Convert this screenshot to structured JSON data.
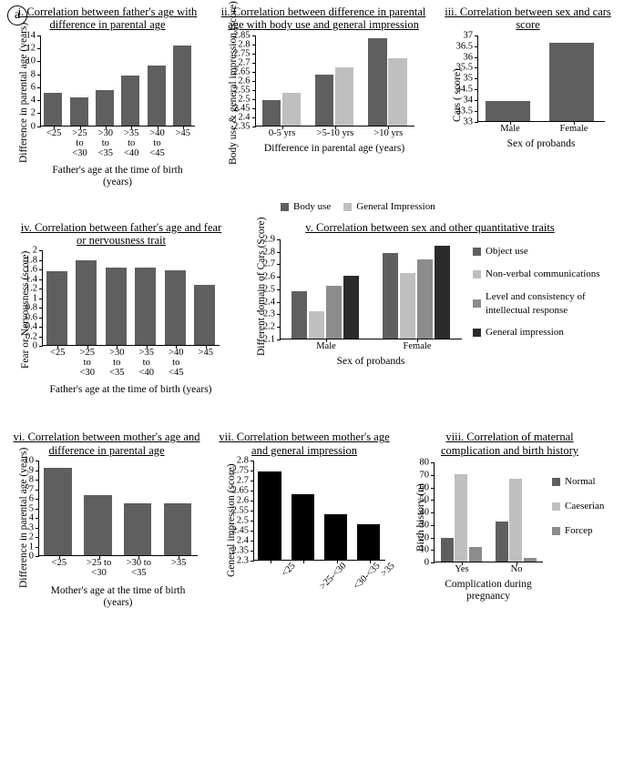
{
  "panel_badge": "a",
  "colors": {
    "dark_grey": "#5f5f5f",
    "light_grey": "#bfbfbf",
    "mid_grey": "#8c8c8c",
    "near_black": "#2b2b2b",
    "black": "#000000",
    "white": "#ffffff"
  },
  "chart_i": {
    "title": "i. Correlation between father's age with difference in parental age",
    "ylabel": "Difference in parental age (years)",
    "xlabel": "Father's age at the time of birth (years)",
    "categories": [
      "<25",
      ">25\nto\n<30",
      ">30\nto\n<35",
      ">35\nto\n<40",
      ">40\nto\n<45",
      ">45"
    ],
    "values": [
      5.0,
      4.3,
      5.4,
      7.6,
      9.2,
      12.3
    ],
    "bar_color": "#5f5f5f",
    "ylim": [
      0,
      14
    ],
    "ytick_step": 2,
    "label_fontsize": 11.5
  },
  "chart_ii": {
    "title": "ii. Correlation between difference in parental age with body use and general impression",
    "ylabel": "Body use & general impression (score)",
    "xlabel": "Difference in parental age (years)",
    "categories": [
      "0-5 yrs",
      ">5-10 yrs",
      ">10 yrs"
    ],
    "series": [
      {
        "name": "Body use",
        "color": "#5f5f5f",
        "values": [
          2.49,
          2.63,
          2.83
        ]
      },
      {
        "name": "General Impression",
        "color": "#bfbfbf",
        "values": [
          2.53,
          2.67,
          2.72
        ]
      }
    ],
    "ylim": [
      2.35,
      2.85
    ],
    "yticks": [
      2.35,
      2.4,
      2.45,
      2.5,
      2.55,
      2.6,
      2.65,
      2.7,
      2.75,
      2.8,
      2.85
    ]
  },
  "chart_ii_legend": {
    "items": [
      {
        "label": "Body use",
        "color": "#5f5f5f"
      },
      {
        "label": "General Impression",
        "color": "#bfbfbf"
      }
    ]
  },
  "chart_iii": {
    "title": "iii.  Correlation between sex and cars score",
    "ylabel": "Cars ( score)",
    "xlabel": "Sex of probands",
    "categories": [
      "Male",
      "Female"
    ],
    "values": [
      33.9,
      36.6
    ],
    "bar_color": "#5f5f5f",
    "ylim": [
      33,
      37
    ],
    "ytick_step": 0.5
  },
  "chart_iv": {
    "title": "iv. Correlation between father's age and fear or nervousness trait",
    "ylabel": "Fear or Nervousness (score)",
    "xlabel": "Father's age at the time of birth (years)",
    "categories": [
      "<25",
      ">25\nto\n<30",
      ">30\nto\n<35",
      ">35\nto\n<40",
      ">40\nto\n<45",
      ">45"
    ],
    "values": [
      1.55,
      1.78,
      1.63,
      1.62,
      1.56,
      1.27
    ],
    "bar_color": "#5f5f5f",
    "ylim": [
      0,
      2
    ],
    "ytick_step": 0.2
  },
  "chart_v": {
    "title": "v. Correlation between sex and other quantitative traits",
    "ylabel": "Different domain of Cars (Score)",
    "xlabel": "Sex of probands",
    "categories": [
      "Male",
      "Female"
    ],
    "series": [
      {
        "name": "Object use",
        "color": "#5f5f5f",
        "values": [
          2.48,
          2.78
        ]
      },
      {
        "name": "Non-verbal communications",
        "color": "#bfbfbf",
        "values": [
          2.32,
          2.62
        ]
      },
      {
        "name": "Level and consistency of intellectual response",
        "color": "#8c8c8c",
        "values": [
          2.52,
          2.73
        ]
      },
      {
        "name": "General impression",
        "color": "#2b2b2b",
        "values": [
          2.6,
          2.84
        ]
      }
    ],
    "ylim": [
      2.1,
      2.9
    ],
    "ytick_step": 0.1
  },
  "chart_vi": {
    "title": "vi. Correlation between mother's age and difference in parental age",
    "ylabel": "Difference in parental age (years)",
    "xlabel": "Mother's age at the time of birth (years)",
    "categories": [
      "<25",
      ">25 to\n<30",
      ">30 to\n<35",
      ">35"
    ],
    "values": [
      9.2,
      6.3,
      5.4,
      5.4
    ],
    "bar_color": "#5f5f5f",
    "ylim": [
      0,
      10
    ],
    "ytick_step": 1
  },
  "chart_vii": {
    "title": "vii. Correlation between mother's age and general impression",
    "ylabel": "General impression (score)",
    "xlabel": "",
    "categories": [
      "<25",
      ">25-<30",
      "<30-<35",
      ">35"
    ],
    "values": [
      2.74,
      2.63,
      2.53,
      2.48
    ],
    "bar_color": "#000000",
    "ylim": [
      2.3,
      2.8
    ],
    "yticks": [
      2.3,
      2.35,
      2.4,
      2.45,
      2.5,
      2.55,
      2.6,
      2.65,
      2.7,
      2.75,
      2.8
    ],
    "rotate_x": true
  },
  "chart_viii": {
    "title": "viii. Correlation of maternal complication and birth history",
    "ylabel": "Birth history (n)",
    "xlabel": "Complication during\npregnancy\n",
    "categories": [
      "Yes",
      "No"
    ],
    "series": [
      {
        "name": "Normal",
        "color": "#5f5f5f",
        "values": [
          19,
          32
        ]
      },
      {
        "name": "Caeserian",
        "color": "#bfbfbf",
        "values": [
          70,
          66
        ]
      },
      {
        "name": "Forcep",
        "color": "#8c8c8c",
        "values": [
          12,
          3
        ]
      }
    ],
    "ylim": [
      0,
      80
    ],
    "ytick_step": 10
  }
}
